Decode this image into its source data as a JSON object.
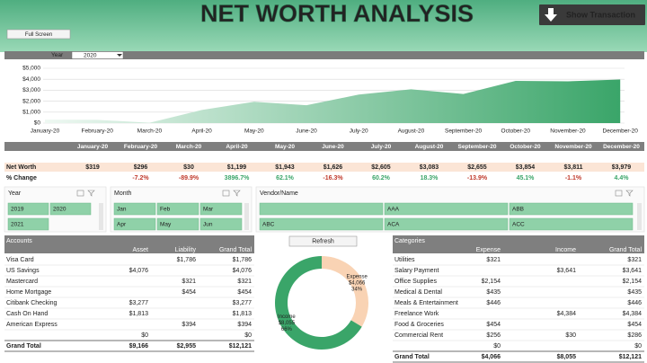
{
  "header": {
    "title": "NET WORTH ANALYSIS",
    "show_transaction": "Show Transaction",
    "full_screen": "Full Screen"
  },
  "filter": {
    "label": "Year",
    "value": "2020"
  },
  "chart_data": {
    "type": "area",
    "categories": [
      "January-20",
      "February-20",
      "March-20",
      "April-20",
      "May-20",
      "June-20",
      "July-20",
      "August-20",
      "September-20",
      "October-20",
      "November-20",
      "December-20"
    ],
    "values": [
      319,
      296,
      30,
      1199,
      1943,
      1626,
      2605,
      3083,
      2655,
      3854,
      3811,
      3979
    ],
    "color": "#3aa569",
    "ylim": [
      0,
      5000
    ],
    "yticks": [
      {
        "value": 0,
        "label": "$0"
      },
      {
        "value": 1000,
        "label": "$1,000"
      },
      {
        "value": 2000,
        "label": "$2,000"
      },
      {
        "value": 3000,
        "label": "$3,000"
      },
      {
        "value": 4000,
        "label": "$4,000"
      },
      {
        "value": 5000,
        "label": "$5,000"
      }
    ],
    "grid": true
  },
  "summary": {
    "net_worth_label": "Net Worth",
    "net_worth": [
      "$319",
      "$296",
      "$30",
      "$1,199",
      "$1,943",
      "$1,626",
      "$2,605",
      "$3,083",
      "$2,655",
      "$3,854",
      "$3,811",
      "$3,979"
    ],
    "change_label": "% Change",
    "change": [
      null,
      "-7.2%",
      "-89.9%",
      "3896.7%",
      "62.1%",
      "-16.3%",
      "60.2%",
      "18.3%",
      "-13.9%",
      "45.1%",
      "-1.1%",
      "4.4%"
    ]
  },
  "slicers": [
    {
      "title": "Year",
      "items": [
        "2019",
        "2020",
        "2021"
      ]
    },
    {
      "title": "Month",
      "items": [
        "Jan",
        "Feb",
        "Mar",
        "Apr",
        "May",
        "Jun"
      ]
    },
    {
      "title": "Vendor/Name",
      "items": [
        null,
        "AAA",
        "ABB",
        "ABC",
        "ACA",
        "ACC"
      ]
    }
  ],
  "accounts": {
    "columns": [
      "Accounts",
      "Asset",
      "Liability",
      "Grand Total"
    ],
    "rows": [
      [
        "Visa Card",
        null,
        "$1,786",
        "$1,786"
      ],
      [
        "US Savings",
        "$4,076",
        null,
        "$4,076"
      ],
      [
        "Mastercard",
        null,
        "$321",
        "$321"
      ],
      [
        "Home Mortgage",
        null,
        "$454",
        "$454"
      ],
      [
        "Citibank Checking",
        "$3,277",
        null,
        "$3,277"
      ],
      [
        "Cash On Hand",
        "$1,813",
        null,
        "$1,813"
      ],
      [
        "American Express",
        null,
        "$394",
        "$394"
      ],
      [
        null,
        "$0",
        null,
        "$0"
      ],
      [
        "Grand Total",
        "$9,166",
        "$2,955",
        "$12,121"
      ]
    ]
  },
  "refresh": "Refresh",
  "donut": {
    "labels": [
      "Expense",
      "Income"
    ],
    "values": [
      4066,
      8055
    ],
    "value_labels": [
      "$4,066",
      "$8,055"
    ],
    "percent_labels": [
      "34%",
      "66%"
    ],
    "colors": [
      "#f9d3b4",
      "#3aa569"
    ]
  },
  "categories": {
    "columns": [
      "Categories",
      "Expense",
      "Income",
      "Grand Total"
    ],
    "rows": [
      [
        "Utilities",
        "$321",
        null,
        "$321"
      ],
      [
        "Salary Payment",
        null,
        "$3,641",
        "$3,641"
      ],
      [
        "Office Supplies",
        "$2,154",
        null,
        "$2,154"
      ],
      [
        "Medical & Dental",
        "$435",
        null,
        "$435"
      ],
      [
        "Meals & Entertainment",
        "$446",
        null,
        "$446"
      ],
      [
        "Freelance Work",
        null,
        "$4,384",
        "$4,384"
      ],
      [
        "Food & Groceries",
        "$454",
        null,
        "$454"
      ],
      [
        "Commercial Rent",
        "$256",
        "$30",
        "$286"
      ],
      [
        null,
        "$0",
        null,
        "$0"
      ],
      [
        "Grand Total",
        "$4,066",
        "$8,055",
        "$12,121"
      ]
    ]
  }
}
